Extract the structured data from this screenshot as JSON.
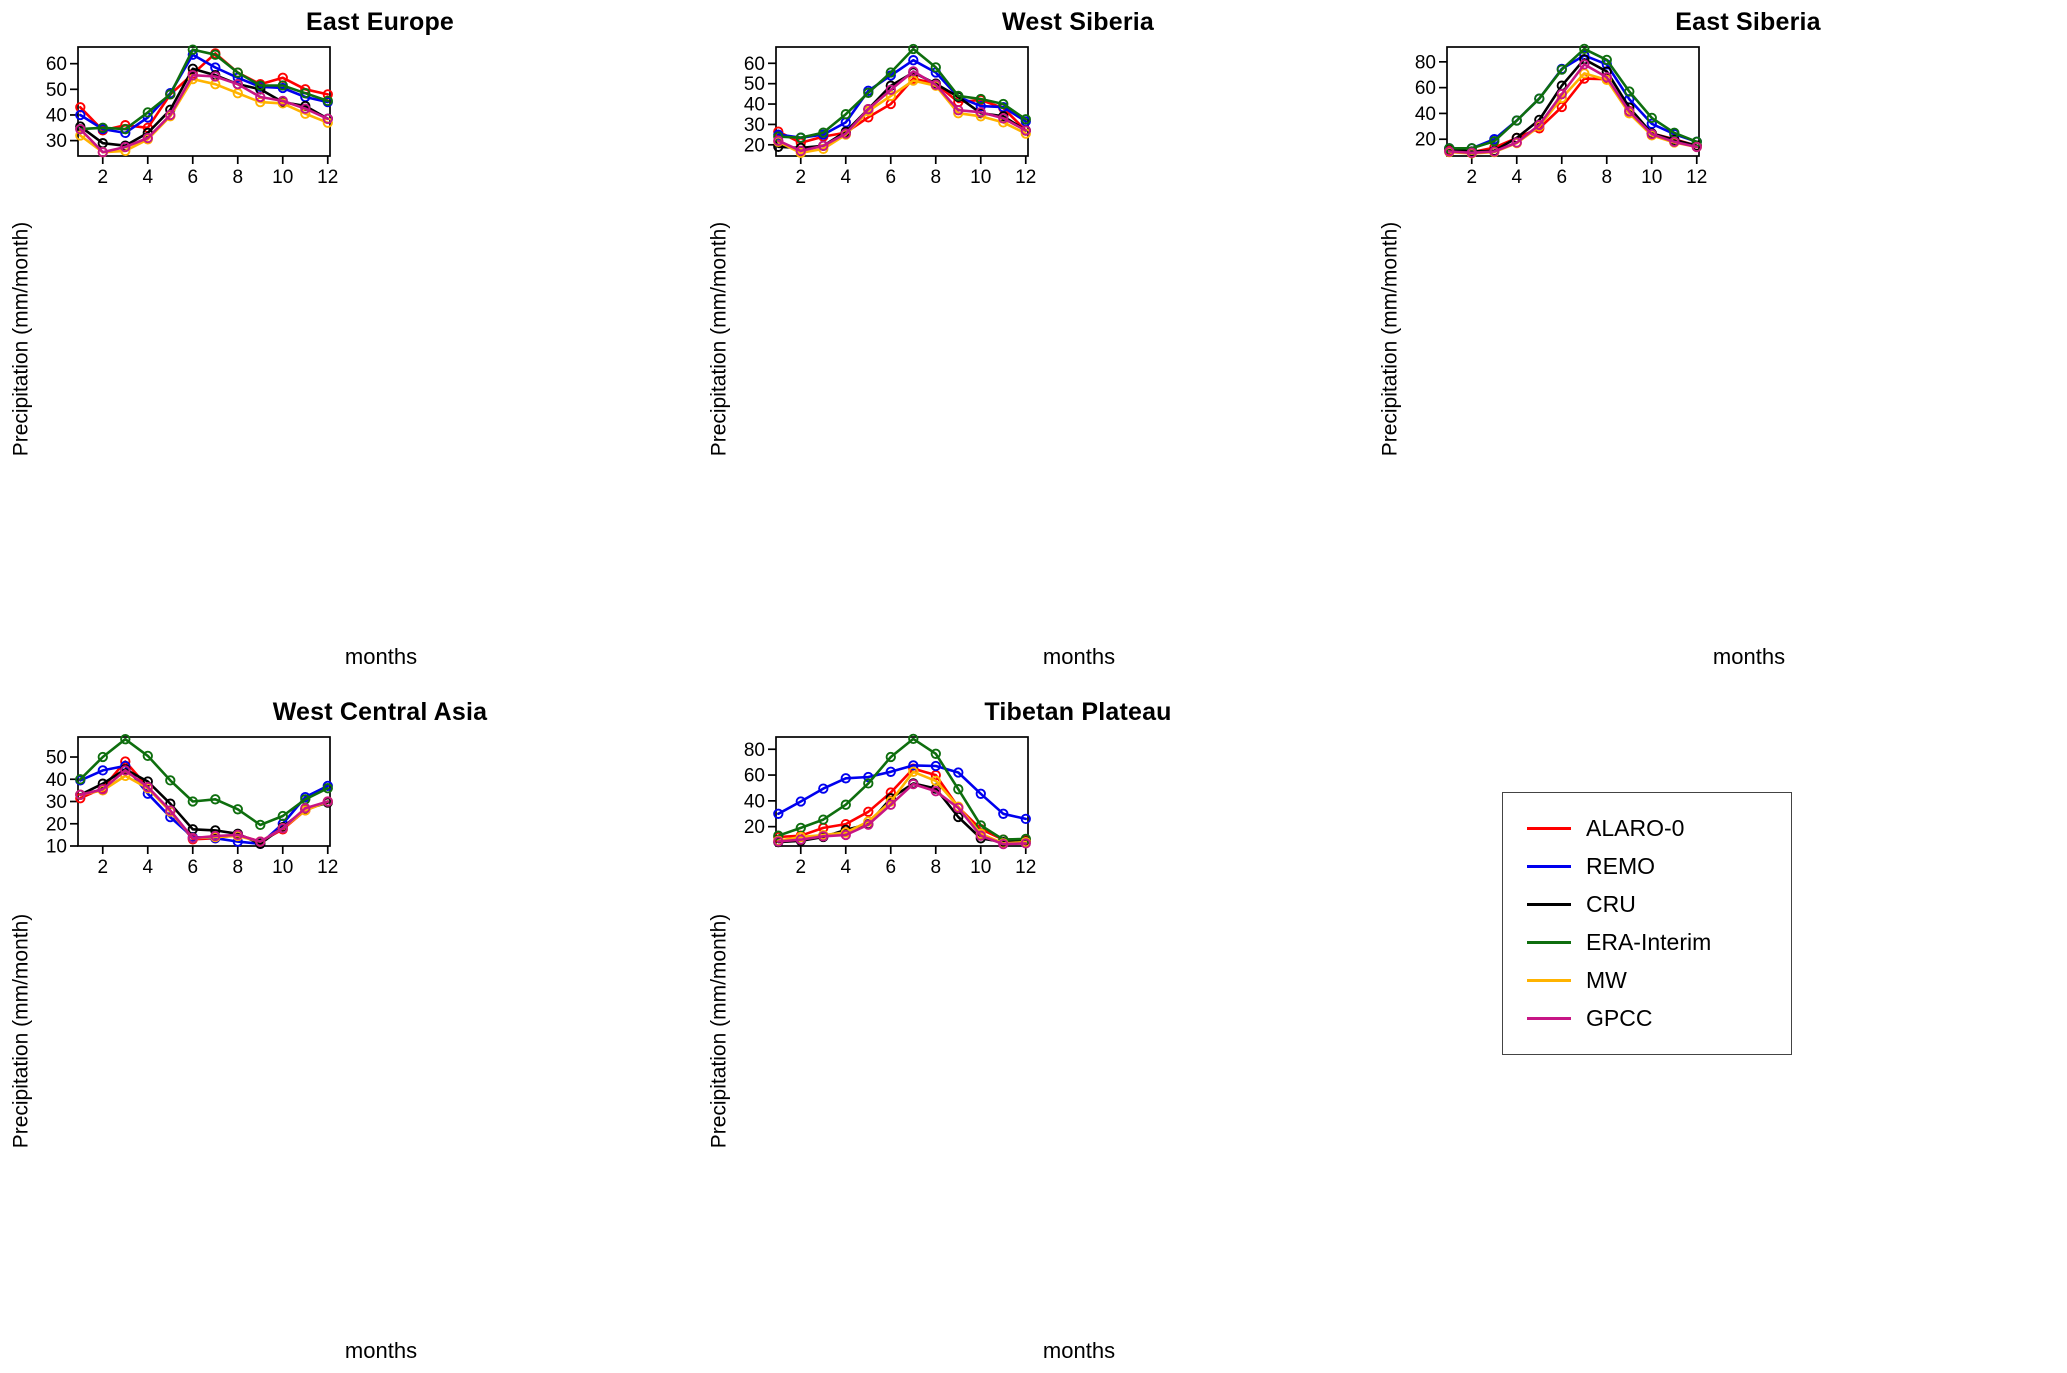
{
  "legend": {
    "entries": [
      {
        "label": "ALARO-0",
        "color": "#ff0000"
      },
      {
        "label": "REMO",
        "color": "#0000ee"
      },
      {
        "label": "CRU",
        "color": "#000000"
      },
      {
        "label": "ERA-Interim",
        "color": "#0e6e0e"
      },
      {
        "label": "MW",
        "color": "#ffb300"
      },
      {
        "label": "GPCC",
        "color": "#c71585"
      }
    ]
  },
  "chart_data": [
    {
      "type": "line",
      "title": "East Europe",
      "xlabel": "months",
      "ylabel": "Precipitation (mm/month)",
      "x": [
        1,
        2,
        3,
        4,
        5,
        6,
        7,
        8,
        9,
        10,
        11,
        12
      ],
      "xlim": [
        0.9,
        12.1
      ],
      "ylim": [
        24,
        66.5
      ],
      "xticks": [
        2,
        4,
        6,
        8,
        10,
        12
      ],
      "yticks": [
        30,
        40,
        50,
        60
      ],
      "series": [
        {
          "name": "ALARO-0",
          "values": [
            43,
            34,
            36,
            35,
            48,
            56,
            64,
            56.5,
            52,
            54.5,
            50,
            48
          ]
        },
        {
          "name": "REMO",
          "values": [
            40,
            34.5,
            33,
            39,
            48.5,
            63.5,
            58.5,
            54.5,
            51,
            50.5,
            47,
            45
          ]
        },
        {
          "name": "CRU",
          "values": [
            35.5,
            29,
            28,
            33,
            42,
            58,
            55.5,
            52,
            50,
            45,
            43.5,
            38.5
          ]
        },
        {
          "name": "ERA-Interim",
          "values": [
            34.5,
            35,
            34.5,
            41,
            48,
            65.5,
            63.5,
            56.5,
            51.5,
            51.5,
            48.5,
            45.5
          ]
        },
        {
          "name": "MW",
          "values": [
            32,
            25.5,
            26,
            30.5,
            39.5,
            54,
            52,
            48.5,
            45,
            44.5,
            40.5,
            37
          ]
        },
        {
          "name": "GPCC",
          "values": [
            34.5,
            25.5,
            27.5,
            31,
            40,
            55.5,
            55,
            52,
            47,
            45.5,
            42.5,
            38.5
          ]
        }
      ]
    },
    {
      "type": "line",
      "title": "West Siberia",
      "xlabel": "months",
      "ylabel": "Precipitation (mm/month)",
      "x": [
        1,
        2,
        3,
        4,
        5,
        6,
        7,
        8,
        9,
        10,
        11,
        12
      ],
      "xlim": [
        0.9,
        12.1
      ],
      "ylim": [
        14.5,
        68
      ],
      "xticks": [
        2,
        4,
        6,
        8,
        10,
        12
      ],
      "yticks": [
        20,
        30,
        40,
        50,
        60
      ],
      "series": [
        {
          "name": "ALARO-0",
          "values": [
            26.5,
            21,
            24,
            26,
            33.5,
            40,
            52.5,
            50,
            41,
            42,
            38,
            27
          ]
        },
        {
          "name": "REMO",
          "values": [
            25,
            23.5,
            25,
            31,
            46.5,
            54,
            61.5,
            55.5,
            43.5,
            39,
            38.5,
            31.5
          ]
        },
        {
          "name": "CRU",
          "values": [
            19,
            18.5,
            19.5,
            26.5,
            37.5,
            49,
            55.5,
            50,
            43.5,
            35.5,
            34,
            27
          ]
        },
        {
          "name": "ERA-Interim",
          "values": [
            24,
            23.5,
            26,
            35,
            45.5,
            55.5,
            67,
            58,
            44,
            42.5,
            40,
            32.5
          ]
        },
        {
          "name": "MW",
          "values": [
            21.5,
            16,
            18,
            25,
            36.5,
            44,
            51.5,
            49,
            35.5,
            34,
            31,
            25.5
          ]
        },
        {
          "name": "GPCC",
          "values": [
            22,
            17,
            19.5,
            25.5,
            37.5,
            47,
            56,
            49.5,
            37,
            36,
            33,
            27
          ]
        }
      ]
    },
    {
      "type": "line",
      "title": "East Siberia",
      "xlabel": "months",
      "ylabel": "Precipitation (mm/month)",
      "x": [
        1,
        2,
        3,
        4,
        5,
        6,
        7,
        8,
        9,
        10,
        11,
        12
      ],
      "xlim": [
        0.9,
        12.1
      ],
      "ylim": [
        7,
        91.5
      ],
      "xticks": [
        2,
        4,
        6,
        8,
        10,
        12
      ],
      "yticks": [
        20,
        40,
        60,
        80
      ],
      "series": [
        {
          "name": "ALARO-0",
          "values": [
            11,
            10,
            13.5,
            21,
            28.5,
            45,
            67,
            66.5,
            42,
            24.5,
            20,
            15
          ]
        },
        {
          "name": "REMO",
          "values": [
            13,
            13,
            20,
            34.5,
            51.5,
            74.5,
            85,
            78,
            51,
            32,
            24,
            18
          ]
        },
        {
          "name": "CRU",
          "values": [
            12.5,
            10.5,
            11,
            21,
            35,
            61.5,
            82,
            72.5,
            44.5,
            24.5,
            19.5,
            15
          ]
        },
        {
          "name": "ERA-Interim",
          "values": [
            13,
            13,
            18.5,
            34.5,
            51.5,
            74,
            90,
            81.5,
            57,
            36.5,
            25,
            18
          ]
        },
        {
          "name": "MW",
          "values": [
            10,
            9,
            10,
            17,
            30,
            52,
            71,
            66,
            40,
            23,
            17.5,
            14
          ]
        },
        {
          "name": "GPCC",
          "values": [
            10.5,
            9.5,
            10.5,
            17.5,
            31,
            55,
            78,
            68,
            41.5,
            24,
            18,
            14
          ]
        }
      ]
    },
    {
      "type": "line",
      "title": "West Central Asia",
      "xlabel": "months",
      "ylabel": "Precipitation (mm/month)",
      "x": [
        1,
        2,
        3,
        4,
        5,
        6,
        7,
        8,
        9,
        10,
        11,
        12
      ],
      "xlim": [
        0.9,
        12.1
      ],
      "ylim": [
        10,
        59
      ],
      "xticks": [
        2,
        4,
        6,
        8,
        10,
        12
      ],
      "yticks": [
        10,
        20,
        30,
        40,
        50
      ],
      "series": [
        {
          "name": "ALARO-0",
          "values": [
            31.5,
            36,
            48,
            36.5,
            25.5,
            13,
            13.5,
            15,
            12,
            17.5,
            26,
            30
          ]
        },
        {
          "name": "REMO",
          "values": [
            39.5,
            44,
            46,
            33.5,
            23,
            14,
            13.5,
            12,
            11,
            20,
            32,
            37
          ]
        },
        {
          "name": "CRU",
          "values": [
            33,
            38,
            44.5,
            39,
            29,
            17.5,
            17,
            15.5,
            11,
            18.5,
            26.5,
            29.5
          ]
        },
        {
          "name": "ERA-Interim",
          "values": [
            40,
            50,
            58,
            50.5,
            39.5,
            30,
            31,
            26.5,
            19.5,
            23.5,
            31,
            36
          ]
        },
        {
          "name": "MW",
          "values": [
            33,
            35,
            41.5,
            36,
            25.5,
            13.5,
            14,
            14.5,
            12,
            18,
            26,
            30
          ]
        },
        {
          "name": "GPCC",
          "values": [
            33,
            35.5,
            44,
            36.5,
            26,
            13.5,
            14.5,
            15,
            12,
            18,
            27,
            30
          ]
        }
      ]
    },
    {
      "type": "line",
      "title": "Tibetan Plateau",
      "xlabel": "months",
      "ylabel": "Precipitation (mm/month)",
      "x": [
        1,
        2,
        3,
        4,
        5,
        6,
        7,
        8,
        9,
        10,
        11,
        12
      ],
      "xlim": [
        0.9,
        12.1
      ],
      "ylim": [
        5,
        89.5
      ],
      "xticks": [
        2,
        4,
        6,
        8,
        10,
        12
      ],
      "yticks": [
        20,
        40,
        60,
        80
      ],
      "series": [
        {
          "name": "ALARO-0",
          "values": [
            12,
            13,
            19,
            22,
            31.5,
            46.5,
            65,
            60,
            35,
            18,
            10,
            10
          ]
        },
        {
          "name": "REMO",
          "values": [
            30,
            39.5,
            49.5,
            57.5,
            58.5,
            62.5,
            67.5,
            67,
            62,
            45.5,
            30,
            26
          ]
        },
        {
          "name": "CRU",
          "values": [
            8,
            9,
            12,
            17.5,
            22,
            42,
            53.5,
            49.5,
            27.5,
            11,
            8,
            8.5
          ]
        },
        {
          "name": "ERA-Interim",
          "values": [
            13,
            19,
            25.5,
            37,
            53.5,
            74,
            88,
            76.5,
            49,
            21,
            10,
            10.5
          ]
        },
        {
          "name": "MW",
          "values": [
            9,
            12,
            13.5,
            15.5,
            24,
            39.5,
            62.5,
            55.5,
            35.5,
            14.5,
            7,
            8
          ]
        },
        {
          "name": "GPCC",
          "values": [
            8.5,
            10,
            12.5,
            13.5,
            21.5,
            37,
            53,
            47.5,
            34.5,
            13,
            6.5,
            7
          ]
        }
      ]
    }
  ]
}
